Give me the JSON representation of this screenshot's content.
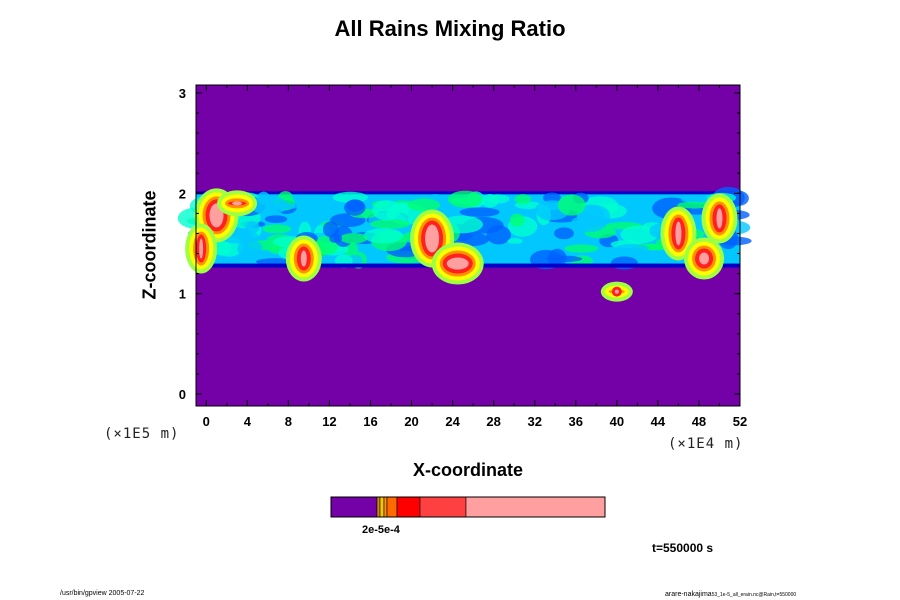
{
  "chart_data": {
    "type": "heatmap",
    "title": "All Rains Mixing Ratio",
    "xlabel": "X-coordinate",
    "ylabel": "Z-coordinate",
    "x_scale_label": "(×1E4 m)",
    "y_scale_label": "(×1E5 m)",
    "x_ticks": [
      0,
      4,
      8,
      12,
      16,
      20,
      24,
      28,
      32,
      36,
      40,
      44,
      48,
      52
    ],
    "y_ticks": [
      0,
      1,
      2,
      3
    ],
    "xlim": [
      -1,
      52
    ],
    "ylim": [
      -0.12,
      3.08
    ],
    "colorbar_label": "2e-5e-4",
    "colorbar_colors": [
      "#7400a8",
      "#d28c00",
      "#f7c600",
      "#ff9000",
      "#ff6a00",
      "#ff0000",
      "#ff4040",
      "#ff9f9f"
    ],
    "background_color": "#7400a8",
    "field_colors": [
      "#0000c8",
      "#0060ff",
      "#00c8ff",
      "#00ffd0",
      "#00ff70",
      "#a0ff40",
      "#ffff00",
      "#ff9000",
      "#ff2020",
      "#ff9f9f"
    ]
  },
  "annotation": "t=550000 s",
  "footer_left": "/usr/bin/gpview 2005-07-22",
  "footer_right": "arare-nakajima",
  "footer_right_sub": "53_1e-5_all_erain.nc@Rain,t=550000"
}
